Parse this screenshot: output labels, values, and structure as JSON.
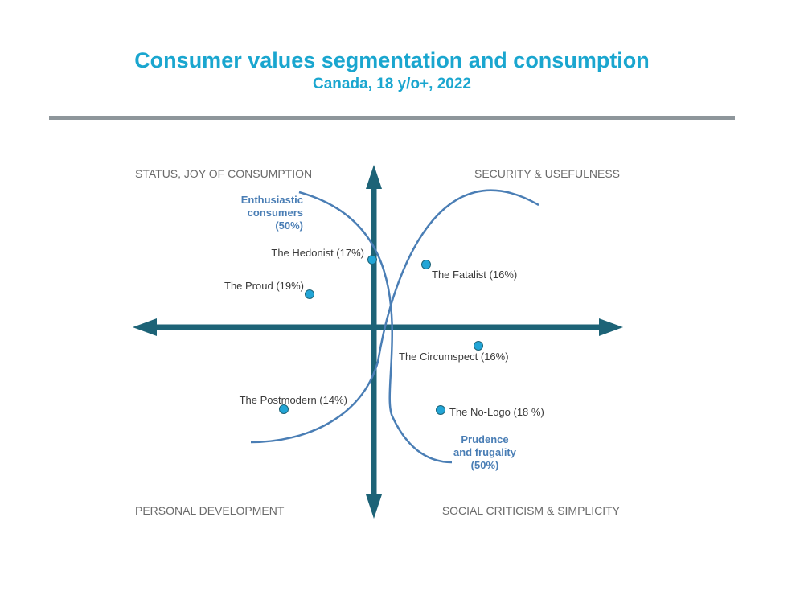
{
  "title": "Consumer values segmentation and consumption",
  "subtitle": "Canada, 18 y/o+, 2022",
  "quadrants": {
    "top_left": "STATUS, JOY OF CONSUMPTION",
    "top_right": "SECURITY & USEFULNESS",
    "bottom_left": "PERSONAL DEVELOPMENT",
    "bottom_right": "SOCIAL CRITICISM & SIMPLICITY"
  },
  "groups": {
    "enthusiastic": [
      "Enthusiastic",
      "consumers",
      "(50%)"
    ],
    "prudence": [
      "Prudence",
      "and frugality",
      "(50%)"
    ]
  },
  "segments": [
    {
      "label": "The Hedonist (17%)"
    },
    {
      "label": "The Proud (19%)"
    },
    {
      "label": "The Fatalist (16%)"
    },
    {
      "label": "The Circumspect (16%)"
    },
    {
      "label": "The Postmodern (14%)"
    },
    {
      "label": "The No-Logo (18 %)"
    }
  ],
  "colors": {
    "title": "#1aa6cf",
    "axis": "#1d6377",
    "curve": "#4a7eb5",
    "dot": "#22a5d6",
    "rule": "#8e969b"
  }
}
